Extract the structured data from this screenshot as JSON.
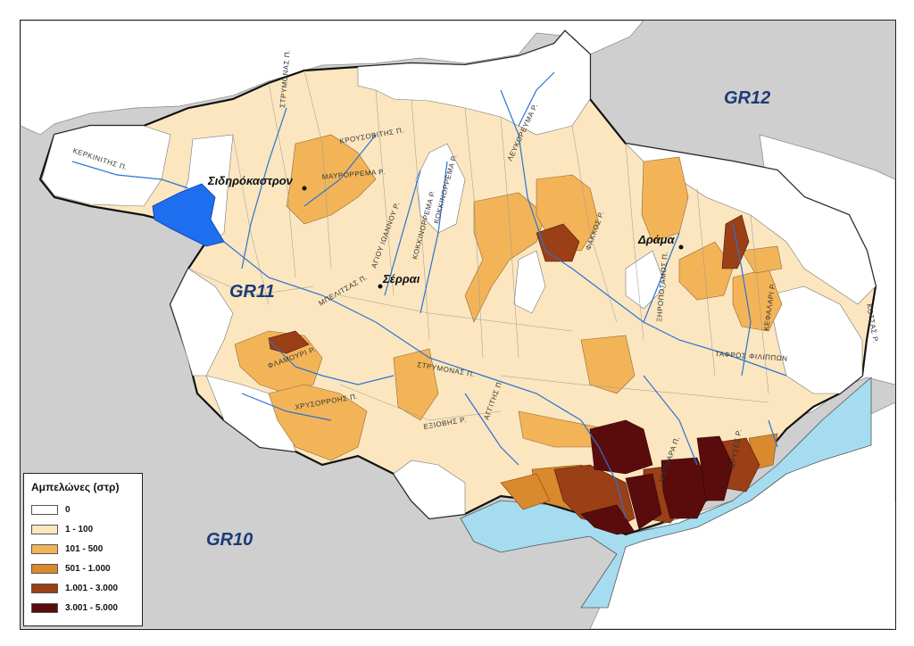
{
  "map": {
    "regions": [
      {
        "code": "GR12"
      },
      {
        "code": "GR11"
      },
      {
        "code": "GR10"
      }
    ],
    "cities": [
      {
        "name": "Σιδηρόκαστρον"
      },
      {
        "name": "Σέρραι"
      },
      {
        "name": "Δράμα"
      }
    ],
    "rivers": [
      {
        "name": "ΚΕΡΚΙΝΙΤΗΣ Π."
      },
      {
        "name": "ΣΤΡΥΜΟΝΑΣ Π."
      },
      {
        "name": "ΚΡΟΥΣΟΒΙΤΗΣ Π."
      },
      {
        "name": "ΜΑΥΡΟΡΡΕΜΑ Ρ."
      },
      {
        "name": "ΑΓΙΟΥ ΙΩΑΝΝΟΥ Ρ."
      },
      {
        "name": "ΚΟΚΚΙΝΟΡΡΕΜΑ Ρ."
      },
      {
        "name": "ΚΟΚΚΙΝΟΡΡΕΜΑ Ρ."
      },
      {
        "name": "ΛΕΥΚΟΡΕΥΜΑ Ρ."
      },
      {
        "name": "ΦΑΚΚΟΣ Ρ."
      },
      {
        "name": "ΜΠΕΛΙΤΣΑΣ Π."
      },
      {
        "name": "ΦΛΑΜΟΥΡΙ Ρ."
      },
      {
        "name": "ΧΡΥΣΟΡΡΟΗΣ Π."
      },
      {
        "name": "ΣΤΡΥΜΟΝΑΣ Π."
      },
      {
        "name": "ΕΞΙΟΒΗΣ Ρ."
      },
      {
        "name": "ΑΓΓΙΤΗΣ Π."
      },
      {
        "name": "ΞΗΡΟΠΟΤΑΜΟΣ Π."
      },
      {
        "name": "ΚΕΦΑΛΑΡΙ Ρ."
      },
      {
        "name": "ΤΑΦΡΟΣ ΦΙΛΙΠΠΩΝ"
      },
      {
        "name": "ΜΑΡΜΑΡΑ Π."
      },
      {
        "name": "ΒΡΥΣΕΣ Ρ."
      },
      {
        "name": "ΚΟΤΣΑΣ Ρ."
      }
    ]
  },
  "legend": {
    "title": "Αμπελώνες (στρ)",
    "items": [
      {
        "label": "0",
        "color": "#ffffff"
      },
      {
        "label": "1 - 100",
        "color": "#fbe6bf"
      },
      {
        "label": "101 - 500",
        "color": "#f3b458"
      },
      {
        "label": "501 - 1.000",
        "color": "#d98a2d"
      },
      {
        "label": "1.001 - 3.000",
        "color": "#9a3f16"
      },
      {
        "label": "3.001 - 5.000",
        "color": "#5a0c0c"
      }
    ]
  },
  "colors": {
    "background": "#cfcfcf",
    "sea": "#a6dcef",
    "lake": "#1e6ef0",
    "river": "#2a73d4",
    "boundary": "#111111",
    "label": "#1c3a78"
  }
}
